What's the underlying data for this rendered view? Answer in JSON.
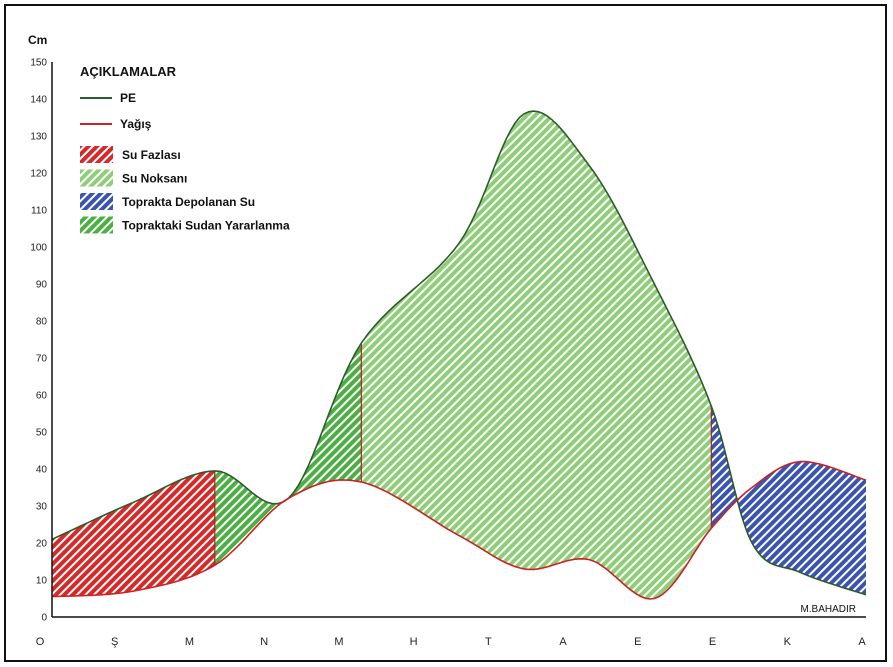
{
  "chart_data": {
    "type": "area",
    "ylabel": "Cm",
    "ylim": [
      0,
      150
    ],
    "yticks": [
      0,
      10,
      20,
      30,
      40,
      50,
      60,
      70,
      80,
      90,
      100,
      110,
      120,
      130,
      140,
      150
    ],
    "months": [
      "O",
      "Ş",
      "M",
      "N",
      "M",
      "H",
      "T",
      "A",
      "E",
      "E",
      "K",
      "A"
    ],
    "series": [
      {
        "name": "PE",
        "color": "#2f5a2b",
        "points": [
          [
            0,
            21
          ],
          [
            1,
            31
          ],
          [
            2,
            39.5
          ],
          [
            2.9,
            32
          ],
          [
            3.8,
            74
          ],
          [
            5,
            101
          ],
          [
            5.8,
            136
          ],
          [
            6.6,
            122
          ],
          [
            7.4,
            90
          ],
          [
            8.1,
            57
          ],
          [
            8.6,
            20
          ],
          [
            9.2,
            12
          ],
          [
            10,
            6
          ]
        ]
      },
      {
        "name": "Yağış",
        "color": "#cc2222",
        "points": [
          [
            0,
            5.5
          ],
          [
            1,
            7
          ],
          [
            2,
            14
          ],
          [
            2.9,
            32
          ],
          [
            3.8,
            36.5
          ],
          [
            5,
            22
          ],
          [
            5.8,
            13
          ],
          [
            6.6,
            15.5
          ],
          [
            7.4,
            5
          ],
          [
            8.1,
            24
          ],
          [
            8.6,
            35
          ],
          [
            9.2,
            42
          ],
          [
            10,
            37
          ]
        ]
      }
    ],
    "zones": [
      {
        "legend": "Su Fazlası",
        "color": "#d42a2a",
        "stripe": "#ffffff",
        "from": 0,
        "to": 2
      },
      {
        "legend": "Topraktaki Sudan Yararlanma",
        "color": "#4caf43",
        "stripe": "#ffffff",
        "from": 2,
        "to": 2.9
      },
      {
        "legend": "Topraktaki Sudan Yararlanma",
        "color": "#4caf43",
        "stripe": "#ffffff",
        "from": 2.9,
        "to": 3.8
      },
      {
        "legend": "Su Noksanı",
        "color": "#8fce78",
        "stripe": "#ffffff",
        "from": 3.8,
        "to": 8.1
      },
      {
        "legend": "Toprakta Depolanan Su",
        "color": "#3a54b0",
        "stripe": "#ffffff",
        "from": 8.1,
        "to": 10
      }
    ],
    "legend": {
      "title": "AÇIKLAMALAR",
      "placement": "top-left",
      "lines": [
        {
          "label": "PE",
          "color": "#2f5a2b"
        },
        {
          "label": "Yağış",
          "color": "#cc2222"
        }
      ],
      "boxes": [
        {
          "label": "Su Fazlası",
          "color": "#d42a2a"
        },
        {
          "label": "Su Noksanı",
          "color": "#8fce78"
        },
        {
          "label": "Toprakta Depolanan Su",
          "color": "#3a54b0"
        },
        {
          "label": "Topraktaki Sudan Yararlanma",
          "color": "#4caf43"
        }
      ]
    },
    "author": "M.BAHADIR"
  }
}
